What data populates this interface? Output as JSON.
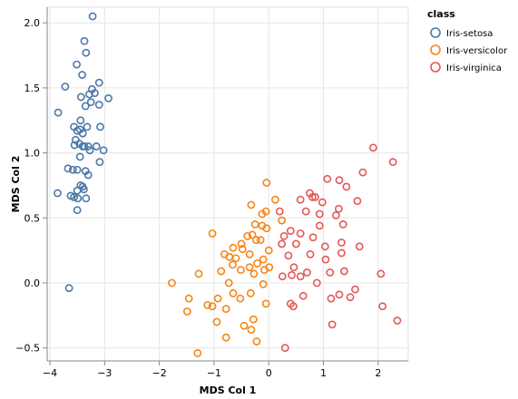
{
  "chart_data": {
    "type": "scatter",
    "xlabel": "MDS Col 1",
    "ylabel": "MDS Col 2",
    "xlim": [
      -4.05,
      2.55
    ],
    "ylim": [
      -0.6,
      2.12
    ],
    "xticks": [
      -4,
      -3,
      -2,
      -1,
      0,
      1,
      2
    ],
    "yticks": [
      -0.5,
      0.0,
      0.5,
      1.0,
      1.5,
      2.0
    ],
    "ytick_labels": [
      "-0.5",
      "0.0",
      "0.5",
      "1.0",
      "1.5",
      "2.0"
    ],
    "grid": true,
    "legend": {
      "title": "class",
      "placement": "top-right",
      "entries": [
        "Iris-setosa",
        "Iris-versicolor",
        "Iris-virginica"
      ]
    },
    "series": [
      {
        "name": "Iris-setosa",
        "color": "#4c78a8",
        "points": [
          [
            -3.22,
            2.05
          ],
          [
            -3.37,
            1.86
          ],
          [
            -3.34,
            1.77
          ],
          [
            -3.51,
            1.68
          ],
          [
            -3.41,
            1.6
          ],
          [
            -3.72,
            1.51
          ],
          [
            -3.23,
            1.49
          ],
          [
            -3.1,
            1.54
          ],
          [
            -3.28,
            1.45
          ],
          [
            -3.18,
            1.46
          ],
          [
            -3.43,
            1.43
          ],
          [
            -3.25,
            1.39
          ],
          [
            -2.93,
            1.42
          ],
          [
            -3.85,
            1.31
          ],
          [
            -3.1,
            1.37
          ],
          [
            -3.35,
            1.36
          ],
          [
            -3.44,
            1.25
          ],
          [
            -3.56,
            1.2
          ],
          [
            -3.5,
            1.17
          ],
          [
            -3.45,
            1.18
          ],
          [
            -3.32,
            1.2
          ],
          [
            -3.4,
            1.15
          ],
          [
            -3.08,
            1.2
          ],
          [
            -3.53,
            1.1
          ],
          [
            -3.46,
            1.07
          ],
          [
            -3.4,
            1.05
          ],
          [
            -3.3,
            1.05
          ],
          [
            -3.15,
            1.05
          ],
          [
            -3.55,
            1.06
          ],
          [
            -3.37,
            1.05
          ],
          [
            -3.27,
            1.02
          ],
          [
            -3.02,
            1.02
          ],
          [
            -3.45,
            0.97
          ],
          [
            -3.09,
            0.93
          ],
          [
            -3.67,
            0.88
          ],
          [
            -3.58,
            0.87
          ],
          [
            -3.5,
            0.87
          ],
          [
            -3.35,
            0.86
          ],
          [
            -3.3,
            0.83
          ],
          [
            -3.44,
            0.75
          ],
          [
            -3.4,
            0.74
          ],
          [
            -3.5,
            0.71
          ],
          [
            -3.56,
            0.66
          ],
          [
            -3.86,
            0.69
          ],
          [
            -3.62,
            0.67
          ],
          [
            -3.49,
            0.65
          ],
          [
            -3.34,
            0.65
          ],
          [
            -3.38,
            0.72
          ],
          [
            -3.5,
            0.56
          ],
          [
            -3.65,
            -0.04
          ]
        ]
      },
      {
        "name": "Iris-versicolor",
        "color": "#f58518",
        "points": [
          [
            -0.04,
            0.77
          ],
          [
            -0.32,
            0.6
          ],
          [
            -0.05,
            0.55
          ],
          [
            -0.12,
            0.53
          ],
          [
            0.12,
            0.64
          ],
          [
            -0.25,
            0.45
          ],
          [
            -0.12,
            0.44
          ],
          [
            -0.04,
            0.42
          ],
          [
            0.24,
            0.48
          ],
          [
            -1.03,
            0.38
          ],
          [
            -0.39,
            0.36
          ],
          [
            -0.3,
            0.37
          ],
          [
            -0.15,
            0.33
          ],
          [
            -0.5,
            0.3
          ],
          [
            -0.65,
            0.27
          ],
          [
            -0.48,
            0.26
          ],
          [
            -0.81,
            0.22
          ],
          [
            -0.23,
            0.33
          ],
          [
            -0.35,
            0.22
          ],
          [
            0.0,
            0.25
          ],
          [
            -0.72,
            0.2
          ],
          [
            -0.6,
            0.19
          ],
          [
            -0.1,
            0.18
          ],
          [
            -0.35,
            0.12
          ],
          [
            -0.21,
            0.15
          ],
          [
            -1.77,
            0.0
          ],
          [
            -1.28,
            0.07
          ],
          [
            -0.87,
            0.09
          ],
          [
            -0.66,
            0.14
          ],
          [
            -0.51,
            0.1
          ],
          [
            -0.27,
            0.07
          ],
          [
            -0.08,
            0.1
          ],
          [
            0.01,
            0.12
          ],
          [
            -0.1,
            -0.01
          ],
          [
            -0.73,
            0.0
          ],
          [
            -1.46,
            -0.12
          ],
          [
            -0.93,
            -0.12
          ],
          [
            -0.65,
            -0.08
          ],
          [
            -0.33,
            -0.08
          ],
          [
            -1.49,
            -0.22
          ],
          [
            -1.12,
            -0.17
          ],
          [
            -1.03,
            -0.18
          ],
          [
            -0.78,
            -0.2
          ],
          [
            -0.52,
            -0.12
          ],
          [
            -0.28,
            -0.28
          ],
          [
            -0.05,
            -0.16
          ],
          [
            -0.95,
            -0.3
          ],
          [
            -0.78,
            -0.42
          ],
          [
            -1.3,
            -0.54
          ],
          [
            -0.32,
            -0.36
          ],
          [
            -0.45,
            -0.33
          ],
          [
            -0.22,
            -0.45
          ]
        ]
      },
      {
        "name": "Iris-virginica",
        "color": "#e45756",
        "points": [
          [
            1.91,
            1.04
          ],
          [
            2.27,
            0.93
          ],
          [
            1.72,
            0.85
          ],
          [
            1.07,
            0.8
          ],
          [
            1.29,
            0.79
          ],
          [
            1.42,
            0.74
          ],
          [
            1.62,
            0.63
          ],
          [
            0.75,
            0.69
          ],
          [
            0.85,
            0.66
          ],
          [
            0.8,
            0.66
          ],
          [
            0.98,
            0.62
          ],
          [
            0.58,
            0.64
          ],
          [
            1.28,
            0.57
          ],
          [
            1.23,
            0.52
          ],
          [
            0.93,
            0.53
          ],
          [
            0.68,
            0.55
          ],
          [
            0.2,
            0.55
          ],
          [
            0.93,
            0.44
          ],
          [
            0.4,
            0.4
          ],
          [
            0.28,
            0.36
          ],
          [
            0.58,
            0.38
          ],
          [
            1.36,
            0.45
          ],
          [
            0.81,
            0.35
          ],
          [
            1.03,
            0.28
          ],
          [
            1.33,
            0.31
          ],
          [
            1.66,
            0.28
          ],
          [
            0.24,
            0.3
          ],
          [
            0.5,
            0.3
          ],
          [
            1.33,
            0.23
          ],
          [
            0.76,
            0.22
          ],
          [
            1.04,
            0.18
          ],
          [
            0.46,
            0.12
          ],
          [
            0.36,
            0.21
          ],
          [
            1.12,
            0.08
          ],
          [
            1.38,
            0.09
          ],
          [
            0.7,
            0.08
          ],
          [
            0.58,
            0.05
          ],
          [
            0.25,
            0.05
          ],
          [
            0.42,
            0.06
          ],
          [
            0.88,
            0.0
          ],
          [
            1.29,
            -0.09
          ],
          [
            1.58,
            -0.05
          ],
          [
            2.05,
            0.07
          ],
          [
            1.14,
            -0.12
          ],
          [
            0.63,
            -0.1
          ],
          [
            1.49,
            -0.11
          ],
          [
            0.4,
            -0.16
          ],
          [
            0.45,
            -0.18
          ],
          [
            2.35,
            -0.29
          ],
          [
            2.08,
            -0.18
          ],
          [
            1.16,
            -0.32
          ],
          [
            0.3,
            -0.5
          ]
        ]
      }
    ]
  }
}
